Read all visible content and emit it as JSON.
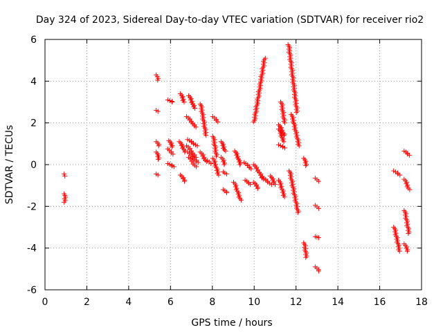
{
  "chart_data": {
    "type": "scatter",
    "title": "Day 324 of 2023, Sidereal Day-to-day VTEC variation (SDTVAR) for receiver rio2",
    "xlabel": "GPS time / hours",
    "ylabel": "SDTVAR / TECUs",
    "xlim": [
      0,
      18
    ],
    "ylim": [
      -6,
      6
    ],
    "xticks": [
      0,
      2,
      4,
      6,
      8,
      10,
      12,
      14,
      16,
      18
    ],
    "yticks": [
      -6,
      -4,
      -2,
      0,
      2,
      4,
      6
    ],
    "xtick_labels": [
      "0",
      "2",
      "4",
      "6",
      "8",
      "10",
      "12",
      "14",
      "16",
      "18"
    ],
    "ytick_labels": [
      "-6",
      "-4",
      "-2",
      "0",
      "2",
      "4",
      "6"
    ],
    "grid": true,
    "marker": "+",
    "marker_color": "#ff0000",
    "segments": [
      {
        "x": [
          0.95,
          0.95
        ],
        "y": [
          -0.45,
          -0.55
        ]
      },
      {
        "x": [
          0.95,
          0.95
        ],
        "y": [
          -1.4,
          -1.8
        ]
      },
      {
        "x": [
          5.35,
          5.4
        ],
        "y": [
          4.3,
          4.05
        ]
      },
      {
        "x": [
          5.35,
          5.4
        ],
        "y": [
          2.6,
          2.55
        ]
      },
      {
        "x": [
          5.35,
          5.45
        ],
        "y": [
          1.1,
          0.9
        ]
      },
      {
        "x": [
          5.35,
          5.45
        ],
        "y": [
          0.6,
          0.25
        ]
      },
      {
        "x": [
          5.35,
          5.4
        ],
        "y": [
          -0.45,
          -0.5
        ]
      },
      {
        "x": [
          5.9,
          6.1
        ],
        "y": [
          3.1,
          3.0
        ]
      },
      {
        "x": [
          5.95,
          6.1
        ],
        "y": [
          1.15,
          0.85
        ]
      },
      {
        "x": [
          5.9,
          6.1
        ],
        "y": [
          0.75,
          0.5
        ]
      },
      {
        "x": [
          5.9,
          6.15
        ],
        "y": [
          0.05,
          -0.1
        ]
      },
      {
        "x": [
          6.5,
          6.65
        ],
        "y": [
          3.4,
          3.0
        ]
      },
      {
        "x": [
          6.45,
          6.7
        ],
        "y": [
          1.1,
          0.6
        ]
      },
      {
        "x": [
          6.5,
          6.7
        ],
        "y": [
          -0.5,
          -0.8
        ]
      },
      {
        "x": [
          6.9,
          7.15
        ],
        "y": [
          3.3,
          2.7
        ]
      },
      {
        "x": [
          6.8,
          7.2
        ],
        "y": [
          2.3,
          1.8
        ]
      },
      {
        "x": [
          6.85,
          7.25
        ],
        "y": [
          1.2,
          0.9
        ]
      },
      {
        "x": [
          6.8,
          7.2
        ],
        "y": [
          0.9,
          0.35
        ]
      },
      {
        "x": [
          6.85,
          7.3
        ],
        "y": [
          0.6,
          0.1
        ]
      },
      {
        "x": [
          6.9,
          7.2
        ],
        "y": [
          0.35,
          -0.1
        ]
      },
      {
        "x": [
          7.45,
          7.7
        ],
        "y": [
          2.9,
          1.4
        ]
      },
      {
        "x": [
          7.45,
          7.7
        ],
        "y": [
          0.6,
          0.15
        ]
      },
      {
        "x": [
          7.8,
          7.9
        ],
        "y": [
          0.2,
          0.05
        ]
      },
      {
        "x": [
          8.05,
          8.25
        ],
        "y": [
          2.3,
          2.05
        ]
      },
      {
        "x": [
          8.05,
          8.2
        ],
        "y": [
          1.35,
          0.4
        ]
      },
      {
        "x": [
          8.05,
          8.3
        ],
        "y": [
          0.3,
          -0.5
        ]
      },
      {
        "x": [
          8.45,
          8.6
        ],
        "y": [
          1.1,
          0.65
        ]
      },
      {
        "x": [
          8.45,
          8.6
        ],
        "y": [
          0.35,
          0.0
        ]
      },
      {
        "x": [
          8.55,
          8.65
        ],
        "y": [
          -0.35,
          -0.45
        ]
      },
      {
        "x": [
          8.55,
          8.7
        ],
        "y": [
          -1.2,
          -1.35
        ]
      },
      {
        "x": [
          9.1,
          9.35
        ],
        "y": [
          0.65,
          0.0
        ]
      },
      {
        "x": [
          9.05,
          9.35
        ],
        "y": [
          -0.85,
          -1.7
        ]
      },
      {
        "x": [
          9.55,
          9.85
        ],
        "y": [
          0.1,
          -0.2
        ]
      },
      {
        "x": [
          9.6,
          9.8
        ],
        "y": [
          -0.75,
          -0.95
        ]
      },
      {
        "x": [
          10.0,
          10.5
        ],
        "y": [
          2.05,
          5.1
        ]
      },
      {
        "x": [
          10.0,
          10.45
        ],
        "y": [
          0.0,
          -0.7
        ]
      },
      {
        "x": [
          10.0,
          10.2
        ],
        "y": [
          -0.85,
          -1.15
        ]
      },
      {
        "x": [
          10.4,
          10.8
        ],
        "y": [
          -0.6,
          -0.95
        ]
      },
      {
        "x": [
          10.8,
          11.0
        ],
        "y": [
          -0.55,
          -0.95
        ]
      },
      {
        "x": [
          11.2,
          11.45
        ],
        "y": [
          1.9,
          1.4
        ]
      },
      {
        "x": [
          11.2,
          11.4
        ],
        "y": [
          1.7,
          1.1
        ]
      },
      {
        "x": [
          11.3,
          11.45
        ],
        "y": [
          3.0,
          2.0
        ]
      },
      {
        "x": [
          11.2,
          11.45
        ],
        "y": [
          0.95,
          0.8
        ]
      },
      {
        "x": [
          11.2,
          11.45
        ],
        "y": [
          -0.75,
          -1.55
        ]
      },
      {
        "x": [
          11.65,
          12.05
        ],
        "y": [
          5.75,
          2.5
        ]
      },
      {
        "x": [
          11.8,
          12.15
        ],
        "y": [
          2.4,
          0.9
        ]
      },
      {
        "x": [
          11.7,
          12.1
        ],
        "y": [
          -0.3,
          -2.3
        ]
      },
      {
        "x": [
          12.4,
          12.5
        ],
        "y": [
          0.3,
          -0.05
        ]
      },
      {
        "x": [
          12.4,
          12.5
        ],
        "y": [
          -3.75,
          -4.45
        ]
      },
      {
        "x": [
          12.95,
          13.05
        ],
        "y": [
          -0.65,
          -0.8
        ]
      },
      {
        "x": [
          12.95,
          13.05
        ],
        "y": [
          -1.95,
          -2.1
        ]
      },
      {
        "x": [
          12.95,
          13.05
        ],
        "y": [
          -3.45,
          -3.5
        ]
      },
      {
        "x": [
          12.95,
          13.1
        ],
        "y": [
          -4.9,
          -5.1
        ]
      },
      {
        "x": [
          16.7,
          16.95
        ],
        "y": [
          -0.3,
          -0.5
        ]
      },
      {
        "x": [
          16.7,
          16.95
        ],
        "y": [
          -3.0,
          -4.15
        ]
      },
      {
        "x": [
          17.2,
          17.4
        ],
        "y": [
          0.65,
          0.45
        ]
      },
      {
        "x": [
          17.2,
          17.4
        ],
        "y": [
          -0.7,
          -1.2
        ]
      },
      {
        "x": [
          17.2,
          17.4
        ],
        "y": [
          -2.2,
          -3.3
        ]
      },
      {
        "x": [
          17.2,
          17.35
        ],
        "y": [
          -3.8,
          -4.15
        ]
      }
    ]
  }
}
